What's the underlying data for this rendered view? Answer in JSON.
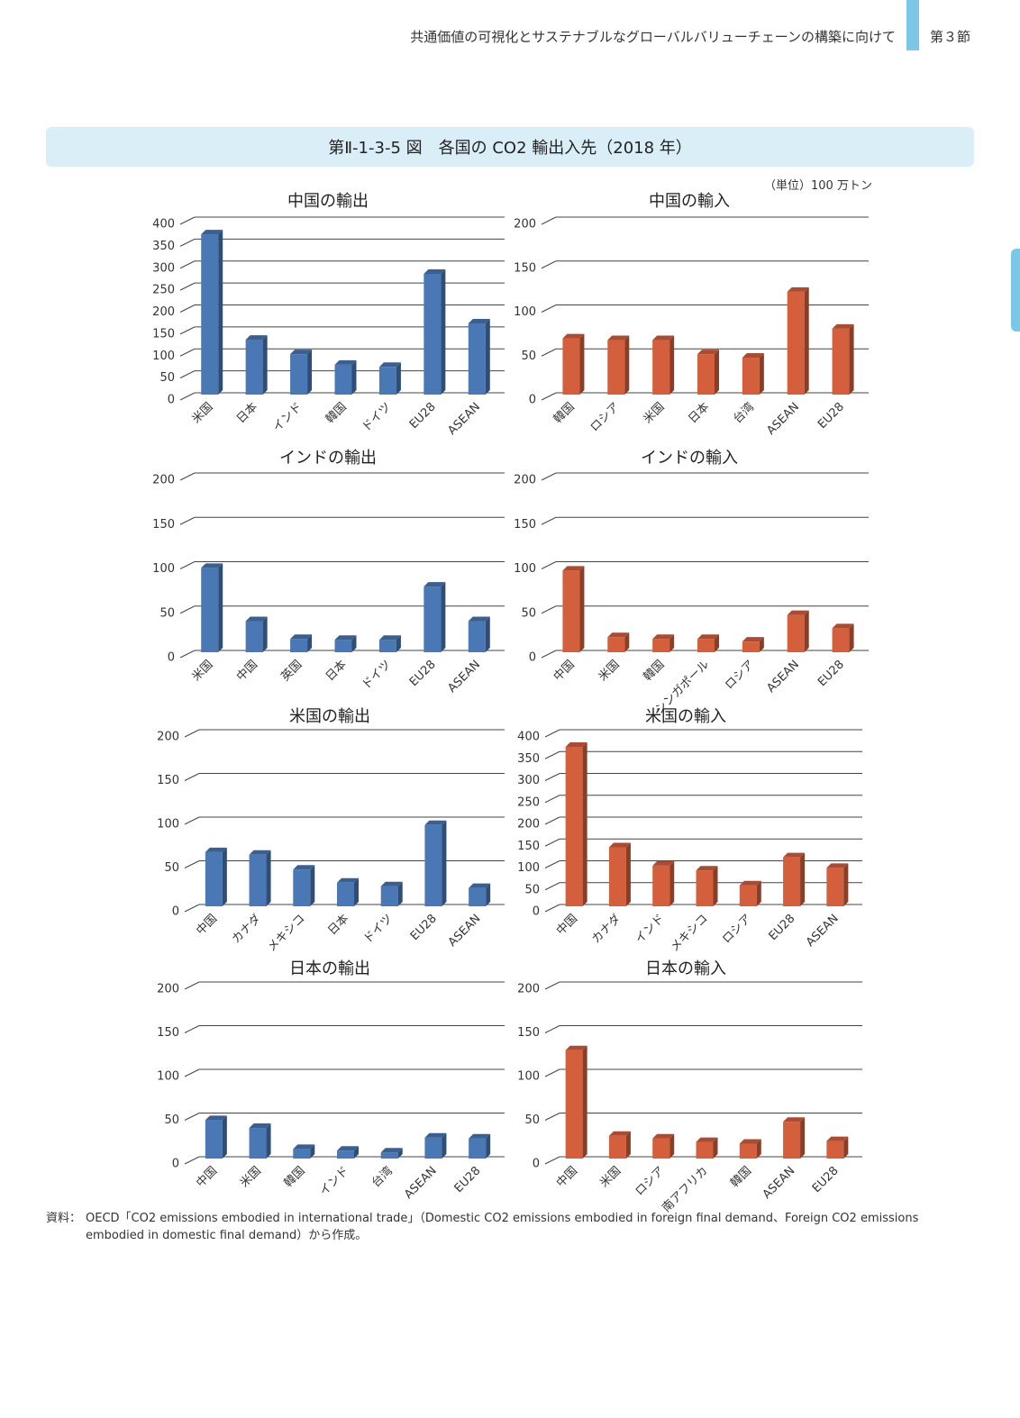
{
  "header": {
    "title": "共通価値の可視化とサステナブルなグローバルバリューチェーンの構築に向けて",
    "section": "第３節"
  },
  "figure": {
    "title": "第Ⅱ-1-3-5 図　各国の CO2 輸出入先（2018 年）",
    "unit": "（単位）100 万トン"
  },
  "source": {
    "label": "資料：",
    "text": "OECD「CO2 emissions embodied in international trade」（Domestic CO2 emissions embodied in foreign final demand、Foreign CO2 emissions embodied in domestic final demand）から作成。"
  },
  "colors": {
    "export": "#4a78b4",
    "import": "#d35f3d",
    "accent": "#7cc7e8"
  },
  "chart_data": [
    {
      "type": "bar",
      "title": "中国の輸出",
      "categories": [
        "米国",
        "日本",
        "インド",
        "韓国",
        "ドイツ",
        "EU28",
        "ASEAN"
      ],
      "values": [
        365,
        125,
        92,
        68,
        63,
        275,
        162
      ],
      "ylim": [
        0,
        400
      ],
      "yticks": [
        0,
        50,
        100,
        150,
        200,
        250,
        300,
        350,
        400
      ],
      "series_color": "export"
    },
    {
      "type": "bar",
      "title": "中国の輸入",
      "categories": [
        "韓国",
        "ロシア",
        "米国",
        "日本",
        "台湾",
        "ASEAN",
        "EU28"
      ],
      "values": [
        64,
        62,
        62,
        46,
        42,
        117,
        75
      ],
      "ylim": [
        0,
        200
      ],
      "yticks": [
        0,
        50,
        100,
        150,
        200
      ],
      "series_color": "import"
    },
    {
      "type": "bar",
      "title": "インドの輸出",
      "categories": [
        "米国",
        "中国",
        "英国",
        "日本",
        "ドイツ",
        "EU28",
        "ASEAN"
      ],
      "values": [
        95,
        35,
        15,
        14,
        14,
        74,
        35
      ],
      "ylim": [
        0,
        200
      ],
      "yticks": [
        0,
        50,
        100,
        150,
        200
      ],
      "series_color": "export"
    },
    {
      "type": "bar",
      "title": "インドの輸入",
      "categories": [
        "中国",
        "米国",
        "韓国",
        "シンガポール",
        "ロシア",
        "ASEAN",
        "EU28"
      ],
      "values": [
        92,
        17,
        15,
        15,
        12,
        42,
        27
      ],
      "ylim": [
        0,
        200
      ],
      "yticks": [
        0,
        50,
        100,
        150,
        200
      ],
      "series_color": "import"
    },
    {
      "type": "bar",
      "title": "米国の輸出",
      "categories": [
        "中国",
        "カナダ",
        "メキシコ",
        "日本",
        "ドイツ",
        "EU28",
        "ASEAN"
      ],
      "values": [
        62,
        59,
        42,
        27,
        23,
        93,
        21
      ],
      "ylim": [
        0,
        200
      ],
      "yticks": [
        0,
        50,
        100,
        150,
        200
      ],
      "series_color": "export"
    },
    {
      "type": "bar",
      "title": "米国の輸入",
      "categories": [
        "中国",
        "カナダ",
        "インド",
        "メキシコ",
        "ロシア",
        "EU28",
        "ASEAN"
      ],
      "values": [
        365,
        135,
        93,
        82,
        48,
        112,
        88
      ],
      "ylim": [
        0,
        400
      ],
      "yticks": [
        0,
        50,
        100,
        150,
        200,
        250,
        300,
        350,
        400
      ],
      "series_color": "import"
    },
    {
      "type": "bar",
      "title": "日本の輸出",
      "categories": [
        "中国",
        "米国",
        "韓国",
        "インド",
        "台湾",
        "ASEAN",
        "EU28"
      ],
      "values": [
        44,
        35,
        11,
        9,
        7,
        24,
        23
      ],
      "ylim": [
        0,
        200
      ],
      "yticks": [
        0,
        50,
        100,
        150,
        200
      ],
      "series_color": "export"
    },
    {
      "type": "bar",
      "title": "日本の輸入",
      "categories": [
        "中国",
        "米国",
        "ロシア",
        "南アフリカ",
        "韓国",
        "ASEAN",
        "EU28"
      ],
      "values": [
        124,
        26,
        23,
        19,
        17,
        42,
        20
      ],
      "ylim": [
        0,
        200
      ],
      "yticks": [
        0,
        50,
        100,
        150,
        200
      ],
      "series_color": "import"
    }
  ]
}
